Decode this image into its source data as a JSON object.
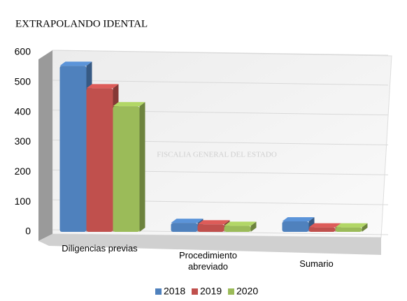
{
  "chart_data": {
    "type": "bar",
    "title": "EXTRAPOLANDO IDENTAL",
    "watermark": "FISCALIA GENERAL DEL ESTADO",
    "categories": [
      "Diligencias previas",
      "Procedimiento abreviado",
      "Sumario"
    ],
    "series": [
      {
        "name": "2018",
        "color": "#4f81bd",
        "values": [
          555,
          30,
          35
        ]
      },
      {
        "name": "2019",
        "color": "#c0504d",
        "values": [
          480,
          25,
          15
        ]
      },
      {
        "name": "2020",
        "color": "#9bbb59",
        "values": [
          420,
          20,
          15
        ]
      }
    ],
    "ylim": [
      0,
      600
    ],
    "yticks": [
      0,
      100,
      200,
      300,
      400,
      500,
      600
    ],
    "grid": true,
    "legend": "bottom"
  }
}
